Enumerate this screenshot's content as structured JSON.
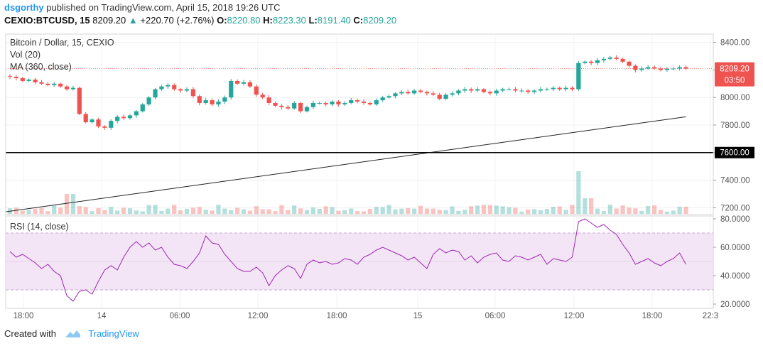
{
  "header": {
    "author": "dsgorthy",
    "published": "published on TradingView.com, April 15, 2018 19:26 UTC",
    "symbol": "CEXIO:BTCUSD, 15",
    "last": "8209.20",
    "change": "+220.70 (+2.76%)",
    "o_label": "O:",
    "o_val": "8220.80",
    "h_label": "H:",
    "h_val": "8223.30",
    "l_label": "L:",
    "l_val": "8191.40",
    "c_label": "C:",
    "c_val": "8209.20"
  },
  "legend": {
    "title": "Bitcoin / Dollar, 15, CEXIO",
    "vol": "Vol (20)",
    "ma": "MA (360, close)",
    "rsi": "RSI (14, close)"
  },
  "price_badge": {
    "value": "8209.20",
    "countdown": "03:50"
  },
  "hline_badge": "7600.00",
  "footer": {
    "created": "Created with",
    "brand": "TradingView"
  },
  "colors": {
    "up": "#26a69a",
    "down": "#ef5350",
    "rsi": "#9c27b0",
    "rsi_band": "#f3e5f5",
    "badge": "#ef5350"
  },
  "chart_data": {
    "type": "candlestick",
    "price_axis": {
      "range": [
        7150,
        8460
      ],
      "ticks": [
        "8400.00",
        "8200.00",
        "8000.00",
        "7800.00",
        "7600.00",
        "7400.00",
        "7200.00"
      ]
    },
    "rsi_axis": {
      "range": [
        17,
        82
      ],
      "ticks": [
        "80.0000",
        "60.0000",
        "40.0000",
        "20.0000"
      ],
      "band": [
        30,
        70
      ]
    },
    "x_ticks": [
      "18:00",
      "14",
      "06:00",
      "12:00",
      "18:00",
      "15",
      "06:00",
      "12:00",
      "18:00",
      "22:3"
    ],
    "horizontal_line": 7600,
    "ma360": {
      "start": 7170,
      "end": 7860
    },
    "close_series": [
      8150,
      8140,
      8120,
      8130,
      8110,
      8100,
      8090,
      8100,
      8080,
      8060,
      8070,
      7880,
      7820,
      7840,
      7790,
      7780,
      7830,
      7860,
      7850,
      7870,
      7900,
      7950,
      8000,
      8060,
      8080,
      8090,
      8060,
      8050,
      8060,
      8010,
      7960,
      7980,
      7950,
      7970,
      8000,
      8120,
      8100,
      8110,
      8080,
      8020,
      8000,
      7960,
      7940,
      7930,
      7920,
      7960,
      7900,
      7930,
      7960,
      7960,
      7950,
      7970,
      7950,
      7960,
      7980,
      7970,
      7960,
      7950,
      7980,
      8000,
      8010,
      8030,
      8040,
      8030,
      8050,
      8040,
      8030,
      8020,
      7990,
      8020,
      8030,
      8050,
      8060,
      8050,
      8060,
      8040,
      8030,
      8050,
      8060,
      8060,
      8050,
      8050,
      8040,
      8050,
      8060,
      8060,
      8070,
      8060,
      8070,
      8060,
      8250,
      8260,
      8250,
      8270,
      8280,
      8290,
      8280,
      8260,
      8230,
      8200,
      8210,
      8220,
      8210,
      8200,
      8210,
      8210,
      8220,
      8209
    ],
    "rsi_series": [
      57,
      53,
      55,
      52,
      49,
      45,
      48,
      43,
      40,
      26,
      22,
      29,
      30,
      27,
      36,
      44,
      47,
      44,
      53,
      60,
      64,
      60,
      63,
      58,
      60,
      53,
      48,
      47,
      45,
      50,
      56,
      68,
      63,
      62,
      55,
      50,
      45,
      43,
      43,
      46,
      42,
      33,
      40,
      44,
      47,
      45,
      38,
      48,
      51,
      49,
      50,
      48,
      49,
      52,
      51,
      48,
      53,
      55,
      58,
      60,
      58,
      56,
      54,
      51,
      53,
      49,
      45,
      55,
      59,
      56,
      58,
      57,
      51,
      54,
      49,
      53,
      55,
      56,
      51,
      50,
      54,
      53,
      51,
      53,
      55,
      48,
      52,
      51,
      50,
      53,
      78,
      80,
      77,
      74,
      76,
      72,
      69,
      62,
      56,
      48,
      50,
      52,
      49,
      47,
      50,
      52,
      56,
      48
    ]
  }
}
